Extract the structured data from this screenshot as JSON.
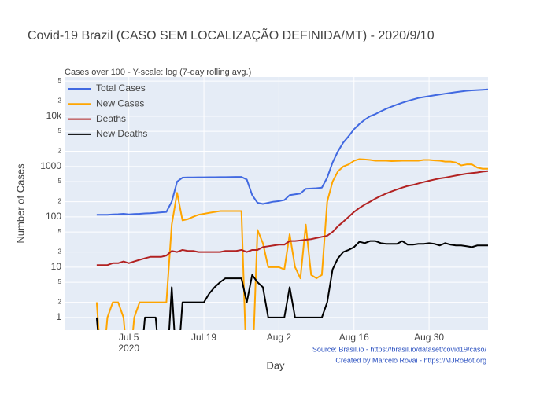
{
  "chart_data": {
    "type": "line",
    "title": "Covid-19 Brazil (CASO SEM LOCALIZAÇÃO DEFINIDA/MT) - 2020/9/10",
    "subtitle": "Cases over 100 - Y-scale: log (7-day rolling avg.)",
    "x_label": "Day",
    "y_label": "Number of Cases",
    "annotations": [
      "Source: Brasil.io - https://brasil.io/dataset/covid19/caso/",
      "Created by Marcelo Rovai - https://MJRoBot.org"
    ],
    "log_y": true,
    "grid": true,
    "legend": "top-left",
    "xlim": [
      "2020-06-23",
      "2020-09-10"
    ],
    "xticks": [
      {
        "value": "2020-07-05",
        "label": "Jul 5\n2020"
      },
      {
        "value": "2020-07-19",
        "label": "Jul 19"
      },
      {
        "value": "2020-08-02",
        "label": "Aug 2"
      },
      {
        "value": "2020-08-16",
        "label": "Aug 16"
      },
      {
        "value": "2020-08-30",
        "label": "Aug 30"
      }
    ],
    "ylim": [
      0.56,
      60000
    ],
    "yticks": [
      1,
      2,
      5,
      10,
      {
        "value": 20,
        "label": "2"
      },
      {
        "value": 50,
        "label": "5"
      },
      100,
      {
        "value": 200,
        "label": "2"
      },
      {
        "value": 500,
        "label": "5"
      },
      1000,
      {
        "value": 2000,
        "label": "2"
      },
      {
        "value": 5000,
        "label": "5"
      },
      {
        "value": 10000,
        "label": "10k"
      },
      {
        "value": 20000,
        "label": "2"
      },
      {
        "value": 50000,
        "label": "5"
      }
    ],
    "x": [
      "2020-06-29",
      "2020-06-30",
      "2020-07-01",
      "2020-07-02",
      "2020-07-03",
      "2020-07-04",
      "2020-07-05",
      "2020-07-06",
      "2020-07-07",
      "2020-07-08",
      "2020-07-09",
      "2020-07-10",
      "2020-07-11",
      "2020-07-12",
      "2020-07-13",
      "2020-07-14",
      "2020-07-15",
      "2020-07-16",
      "2020-07-17",
      "2020-07-18",
      "2020-07-19",
      "2020-07-20",
      "2020-07-21",
      "2020-07-22",
      "2020-07-23",
      "2020-07-24",
      "2020-07-25",
      "2020-07-26",
      "2020-07-27",
      "2020-07-28",
      "2020-07-29",
      "2020-07-30",
      "2020-07-31",
      "2020-08-01",
      "2020-08-02",
      "2020-08-03",
      "2020-08-04",
      "2020-08-05",
      "2020-08-06",
      "2020-08-07",
      "2020-08-08",
      "2020-08-09",
      "2020-08-10",
      "2020-08-11",
      "2020-08-12",
      "2020-08-13",
      "2020-08-14",
      "2020-08-15",
      "2020-08-16",
      "2020-08-17",
      "2020-08-18",
      "2020-08-19",
      "2020-08-20",
      "2020-08-21",
      "2020-08-22",
      "2020-08-23",
      "2020-08-24",
      "2020-08-25",
      "2020-08-26",
      "2020-08-27",
      "2020-08-28",
      "2020-08-29",
      "2020-08-30",
      "2020-08-31",
      "2020-09-01",
      "2020-09-02",
      "2020-09-03",
      "2020-09-04",
      "2020-09-05",
      "2020-09-06",
      "2020-09-07",
      "2020-09-08",
      "2020-09-09",
      "2020-09-10"
    ],
    "series": [
      {
        "name": "Total Cases",
        "color": "#4169e1",
        "values": [
          110,
          110,
          110,
          112,
          113,
          115,
          112,
          114,
          115,
          117,
          118,
          120,
          123,
          125,
          200,
          500,
          600,
          605,
          605,
          610,
          610,
          612,
          612,
          615,
          615,
          618,
          620,
          620,
          550,
          270,
          190,
          180,
          190,
          200,
          205,
          215,
          270,
          280,
          290,
          360,
          365,
          370,
          380,
          600,
          1200,
          2000,
          3000,
          4000,
          5500,
          7000,
          8500,
          10000,
          11000,
          12500,
          14000,
          15500,
          17000,
          18500,
          20000,
          21500,
          23000,
          24000,
          25000,
          26000,
          27000,
          28000,
          29000,
          30000,
          31000,
          32000,
          32500,
          33000,
          33500,
          34000
        ]
      },
      {
        "name": "New Cases",
        "color": "#ffa500",
        "values": [
          2,
          0,
          1,
          2,
          2,
          1,
          0,
          1,
          2,
          2,
          2,
          2,
          2,
          2,
          70,
          300,
          85,
          90,
          100,
          110,
          115,
          120,
          125,
          130,
          130,
          130,
          130,
          130,
          0,
          0,
          55,
          30,
          10,
          10,
          10,
          9,
          45,
          10,
          6,
          70,
          7,
          6,
          7,
          200,
          500,
          800,
          1000,
          1100,
          1300,
          1400,
          1380,
          1350,
          1300,
          1300,
          1300,
          1280,
          1290,
          1300,
          1300,
          1300,
          1300,
          1350,
          1350,
          1320,
          1300,
          1250,
          1250,
          1200,
          1050,
          1100,
          1100,
          950,
          900,
          900
        ]
      },
      {
        "name": "Deaths",
        "color": "#b22222",
        "values": [
          11,
          11,
          11,
          12,
          12,
          13,
          12,
          13,
          14,
          15,
          16,
          16,
          16,
          17,
          21,
          20,
          22,
          21,
          21,
          20,
          20,
          20,
          20,
          20,
          21,
          21,
          21,
          22,
          20,
          22,
          22,
          25,
          26,
          27,
          28,
          28,
          33,
          33,
          34,
          35,
          36,
          38,
          40,
          42,
          50,
          65,
          80,
          100,
          125,
          150,
          175,
          200,
          230,
          260,
          290,
          320,
          350,
          380,
          410,
          430,
          460,
          490,
          520,
          550,
          580,
          600,
          630,
          660,
          690,
          720,
          740,
          760,
          790,
          810
        ]
      },
      {
        "name": "New Deaths",
        "color": "#000000",
        "values": [
          1,
          0,
          0,
          0,
          0,
          0,
          0,
          0,
          0,
          1,
          1,
          1,
          0,
          0,
          4,
          0,
          2,
          2,
          2,
          2,
          2,
          3,
          4,
          5,
          6,
          6,
          6,
          6,
          2,
          7,
          5,
          4,
          1,
          1,
          1,
          1,
          4,
          1,
          1,
          1,
          1,
          1,
          1,
          2,
          9,
          15,
          20,
          22,
          25,
          32,
          30,
          33,
          33,
          30,
          29,
          29,
          29,
          33,
          28,
          28,
          29,
          29,
          30,
          29,
          27,
          30,
          28,
          27,
          27,
          26,
          25,
          27,
          27,
          27
        ]
      }
    ]
  }
}
